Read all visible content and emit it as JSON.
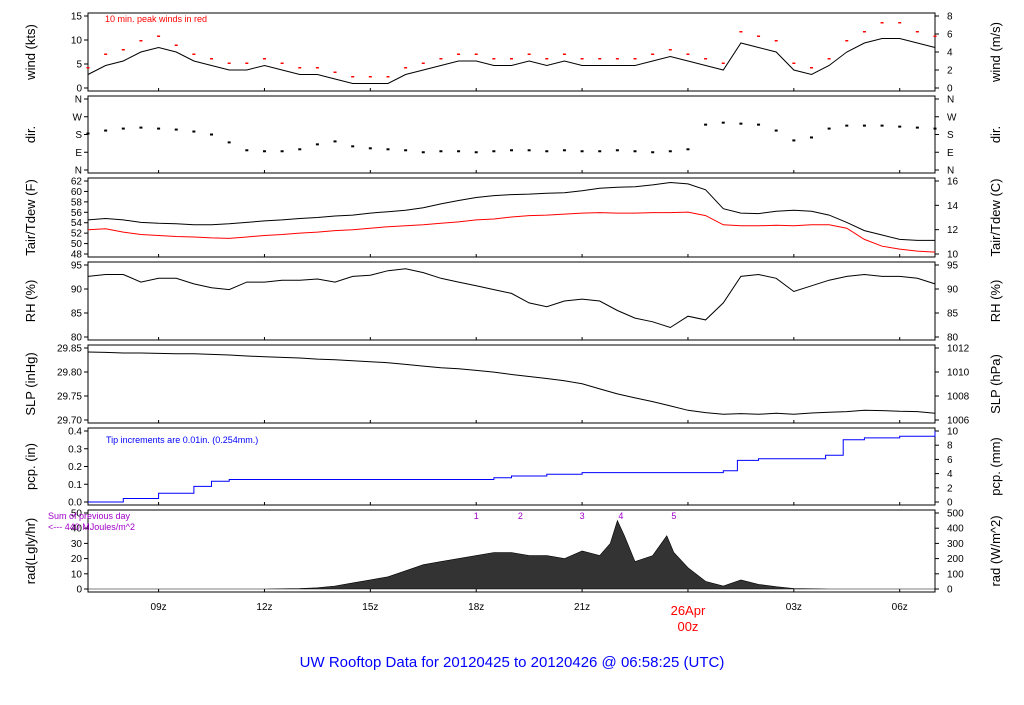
{
  "title": "UW Rooftop Data for 20120425  to  20120426 @ 06:58:25  (UTC)",
  "colors": {
    "line": "#000000",
    "dew": "#ff0000",
    "peak": "#ff0000",
    "pcp": "#0000ff",
    "title": "#0000ff",
    "rad_note": "#a000c8",
    "date_label": "#ff0000",
    "rad_fill": "#333333"
  },
  "x_axis": {
    "ticks": [
      "09z",
      "12z",
      "15z",
      "18z",
      "21z",
      "00z",
      "03z",
      "06z"
    ],
    "tick_hours": [
      2.0,
      5.0,
      8.0,
      11.0,
      14.0,
      17.0,
      20.0,
      23.0
    ],
    "xlim": [
      0.0,
      24.0
    ],
    "date_label": "26Apr",
    "date_hour_label": "00z"
  },
  "chart_data": [
    {
      "type": "line",
      "panel": "wind",
      "ylabel": "wind (kts)",
      "ylabel_right": "wind (m/s)",
      "ylim": [
        0,
        16
      ],
      "yticks": [
        "0",
        "5",
        "10",
        "15"
      ],
      "yticks_right": [
        "0",
        "2",
        "4",
        "6",
        "8"
      ],
      "annotation": "10 min. peak winds in red",
      "x": [
        0.0,
        0.5,
        1.0,
        1.5,
        2.0,
        2.5,
        3.0,
        3.5,
        4.0,
        4.5,
        5.0,
        5.5,
        6.0,
        6.5,
        7.0,
        7.5,
        8.0,
        8.5,
        9.0,
        9.5,
        10.0,
        10.5,
        11.0,
        11.5,
        12.0,
        12.5,
        13.0,
        13.5,
        14.0,
        14.5,
        15.0,
        15.5,
        16.0,
        16.5,
        17.0,
        17.5,
        18.0,
        18.5,
        19.0,
        19.5,
        20.0,
        20.5,
        21.0,
        21.5,
        22.0,
        22.5,
        23.0,
        23.5,
        24.0
      ],
      "series": [
        {
          "values": [
            3,
            5,
            6,
            8,
            9,
            8,
            6,
            5,
            4,
            4,
            5,
            4,
            3,
            3,
            2,
            1,
            1,
            1,
            3,
            4,
            5,
            6,
            6,
            5,
            5,
            6,
            5,
            6,
            5,
            5,
            5,
            5,
            6,
            7,
            6,
            5,
            4,
            10,
            9,
            8,
            4,
            3,
            5,
            8,
            10,
            11,
            11,
            10,
            9
          ]
        },
        {
          "values": [
            4,
            7,
            8,
            10,
            11,
            9,
            7,
            6,
            5,
            5,
            6,
            5,
            4,
            4,
            3,
            2,
            2,
            2,
            4,
            5,
            6,
            7,
            7,
            6,
            6,
            7,
            6,
            7,
            6,
            6,
            6,
            6,
            7,
            8,
            7,
            6,
            5,
            12,
            11,
            10,
            5,
            4,
            6,
            10,
            12,
            14,
            14,
            12,
            11
          ]
        }
      ]
    },
    {
      "type": "scatter",
      "panel": "dir",
      "ylabel": "dir.",
      "ylabel_right": "dir.",
      "ylim": [
        0,
        360
      ],
      "yticks": [
        "N",
        "E",
        "S",
        "W",
        "N"
      ],
      "yticks_right": [
        "N",
        "E",
        "S",
        "W",
        "N"
      ],
      "x": [
        0.0,
        0.5,
        1.0,
        1.5,
        2.0,
        2.5,
        3.0,
        3.5,
        4.0,
        4.5,
        5.0,
        5.5,
        6.0,
        6.5,
        7.0,
        7.5,
        8.0,
        8.5,
        9.0,
        9.5,
        10.0,
        10.5,
        11.0,
        11.5,
        12.0,
        12.5,
        13.0,
        13.5,
        14.0,
        14.5,
        15.0,
        15.5,
        16.0,
        16.5,
        17.0,
        17.5,
        18.0,
        18.5,
        19.0,
        19.5,
        20.0,
        20.5,
        21.0,
        21.5,
        22.0,
        22.5,
        23.0,
        23.5,
        24.0
      ],
      "values": [
        185,
        200,
        210,
        215,
        210,
        205,
        195,
        180,
        140,
        100,
        95,
        95,
        105,
        130,
        145,
        120,
        110,
        105,
        100,
        90,
        95,
        95,
        90,
        95,
        100,
        100,
        95,
        100,
        95,
        95,
        100,
        95,
        90,
        95,
        105,
        230,
        240,
        235,
        230,
        200,
        150,
        165,
        210,
        225,
        225,
        225,
        220,
        215,
        210
      ]
    },
    {
      "type": "line",
      "panel": "temp",
      "ylabel": "Tair/Tdew (F)",
      "ylabel_right": "Tair/Tdew (C)",
      "ylim": [
        47,
        62
      ],
      "yticks": [
        "48",
        "50",
        "52",
        "54",
        "56",
        "58",
        "60",
        "62"
      ],
      "yticks_right": [
        "10",
        "12",
        "14",
        "16"
      ],
      "x": [
        0.0,
        0.5,
        1.0,
        1.5,
        2.0,
        2.5,
        3.0,
        3.5,
        4.0,
        4.5,
        5.0,
        5.5,
        6.0,
        6.5,
        7.0,
        7.5,
        8.0,
        8.5,
        9.0,
        9.5,
        10.0,
        10.5,
        11.0,
        11.5,
        12.0,
        12.5,
        13.0,
        13.5,
        14.0,
        14.5,
        15.0,
        15.5,
        16.0,
        16.5,
        17.0,
        17.5,
        18.0,
        18.5,
        19.0,
        19.5,
        20.0,
        20.5,
        21.0,
        21.5,
        22.0,
        22.5,
        23.0,
        23.5,
        24.0
      ],
      "series": [
        {
          "values": [
            54.0,
            54.3,
            54.0,
            53.5,
            53.3,
            53.2,
            53.0,
            53.0,
            53.2,
            53.5,
            53.8,
            54.0,
            54.3,
            54.5,
            54.8,
            55.0,
            55.4,
            55.7,
            56.0,
            56.5,
            57.3,
            58.0,
            58.6,
            59.0,
            59.2,
            59.3,
            59.5,
            59.6,
            60.0,
            60.5,
            60.7,
            60.8,
            61.2,
            61.7,
            61.4,
            60.2,
            56.3,
            55.4,
            55.3,
            55.8,
            56.0,
            55.8,
            55.0,
            53.5,
            51.8,
            50.9,
            50.0,
            49.8,
            49.8
          ]
        },
        {
          "values": [
            52.0,
            52.2,
            51.5,
            51.0,
            50.8,
            50.6,
            50.5,
            50.3,
            50.2,
            50.5,
            50.8,
            51.0,
            51.3,
            51.5,
            51.8,
            52.0,
            52.3,
            52.6,
            52.8,
            53.0,
            53.3,
            53.6,
            54.0,
            54.2,
            54.6,
            54.9,
            55.0,
            55.2,
            55.4,
            55.5,
            55.4,
            55.4,
            55.5,
            55.5,
            55.6,
            54.9,
            53.0,
            52.8,
            52.8,
            52.9,
            52.8,
            53.0,
            53.0,
            52.3,
            50.0,
            48.6,
            48.0,
            47.6,
            47.4
          ]
        }
      ]
    },
    {
      "type": "line",
      "panel": "rh",
      "ylabel": "RH (%)",
      "ylabel_right": "RH (%)",
      "ylim": [
        77,
        96
      ],
      "yticks": [
        "80",
        "85",
        "90",
        "95"
      ],
      "yticks_right": [
        "80",
        "85",
        "90",
        "95"
      ],
      "x": [
        0.0,
        0.5,
        1.0,
        1.5,
        2.0,
        2.5,
        3.0,
        3.5,
        4.0,
        4.5,
        5.0,
        5.5,
        6.0,
        6.5,
        7.0,
        7.5,
        8.0,
        8.5,
        9.0,
        9.5,
        10.0,
        10.5,
        11.0,
        11.5,
        12.0,
        12.5,
        13.0,
        13.5,
        14.0,
        14.5,
        15.0,
        15.5,
        16.0,
        16.5,
        17.0,
        17.5,
        18.0,
        18.5,
        19.0,
        19.5,
        20.0,
        20.5,
        21.0,
        21.5,
        22.0,
        22.5,
        23.0,
        23.5,
        24.0
      ],
      "values": [
        93.0,
        93.5,
        93.5,
        91.5,
        92.5,
        92.5,
        91.0,
        90.0,
        89.5,
        91.5,
        91.5,
        92.0,
        92.0,
        92.3,
        91.5,
        93.0,
        93.3,
        94.5,
        95.0,
        94.0,
        92.5,
        91.5,
        90.5,
        89.5,
        88.5,
        86.0,
        85.0,
        86.5,
        87.0,
        86.5,
        84.0,
        82.0,
        81.0,
        79.5,
        82.5,
        81.5,
        86.0,
        93.0,
        93.5,
        92.5,
        89.0,
        90.5,
        92.0,
        93.0,
        93.5,
        93.0,
        93.0,
        92.5,
        91.0
      ]
    },
    {
      "type": "line",
      "panel": "slp",
      "ylabel": "SLP (inHg)",
      "ylabel_right": "SLP (hPa)",
      "ylim": [
        29.68,
        29.895
      ],
      "yticks": [
        "29.70",
        "29.75",
        "29.80",
        "29.85"
      ],
      "yticks_right": [
        "1006",
        "1008",
        "1010",
        "1012"
      ],
      "x": [
        0.0,
        0.5,
        1.0,
        1.5,
        2.0,
        2.5,
        3.0,
        3.5,
        4.0,
        4.5,
        5.0,
        5.5,
        6.0,
        6.5,
        7.0,
        7.5,
        8.0,
        8.5,
        9.0,
        9.5,
        10.0,
        10.5,
        11.0,
        11.5,
        12.0,
        12.5,
        13.0,
        13.5,
        14.0,
        14.5,
        15.0,
        15.5,
        16.0,
        16.5,
        17.0,
        17.5,
        18.0,
        18.5,
        19.0,
        19.5,
        20.0,
        20.5,
        21.0,
        21.5,
        22.0,
        22.5,
        23.0,
        23.5,
        24.0
      ],
      "values": [
        29.883,
        29.882,
        29.88,
        29.88,
        29.879,
        29.878,
        29.878,
        29.876,
        29.874,
        29.871,
        29.869,
        29.867,
        29.865,
        29.862,
        29.86,
        29.857,
        29.854,
        29.851,
        29.846,
        29.841,
        29.836,
        29.833,
        29.828,
        29.823,
        29.816,
        29.81,
        29.804,
        29.797,
        29.788,
        29.773,
        29.758,
        29.746,
        29.735,
        29.722,
        29.709,
        29.702,
        29.697,
        29.699,
        29.697,
        29.7,
        29.697,
        29.701,
        29.703,
        29.705,
        29.709,
        29.708,
        29.706,
        29.705,
        29.7
      ]
    },
    {
      "type": "line",
      "panel": "pcp",
      "ylabel": "pcp. (in)",
      "ylabel_right": "pcp. (mm)",
      "ylim": [
        0,
        0.41
      ],
      "yticks": [
        "0.0",
        "0.1",
        "0.2",
        "0.3",
        "0.4"
      ],
      "yticks_right": [
        "0",
        "2",
        "4",
        "6",
        "8",
        "10"
      ],
      "annotation": "Tip increments are 0.01in. (0.254mm.)",
      "x": [
        0.0,
        1.0,
        2.0,
        3.0,
        3.5,
        4.0,
        5.0,
        6.0,
        7.0,
        8.0,
        9.0,
        10.0,
        11.0,
        11.5,
        12.0,
        13.0,
        14.0,
        15.0,
        16.0,
        17.0,
        18.0,
        18.4,
        19.0,
        20.0,
        20.9,
        21.4,
        22.0,
        23.0,
        24.0
      ],
      "values": [
        0.0,
        0.02,
        0.05,
        0.09,
        0.12,
        0.13,
        0.13,
        0.13,
        0.13,
        0.13,
        0.13,
        0.13,
        0.13,
        0.14,
        0.15,
        0.16,
        0.17,
        0.17,
        0.17,
        0.17,
        0.18,
        0.24,
        0.25,
        0.25,
        0.27,
        0.36,
        0.37,
        0.38,
        0.41
      ]
    },
    {
      "type": "area",
      "panel": "rad",
      "ylabel": "rad(Lgly/hr)",
      "ylabel_right": "rad (W/m^2)",
      "ylim": [
        0,
        50
      ],
      "yticks": [
        "0",
        "10",
        "20",
        "30",
        "40",
        "50"
      ],
      "yticks_right": [
        "0",
        "100",
        "200",
        "300",
        "400",
        "500"
      ],
      "annotation_lines": [
        "Sum of previous day",
        "<--- 440 MJoules/m^2"
      ],
      "markers": [
        "1",
        "2",
        "3",
        "4",
        "5"
      ],
      "marker_hours": [
        11.0,
        12.25,
        14.0,
        15.1,
        16.6
      ],
      "x": [
        0.0,
        1.0,
        2.0,
        3.0,
        4.0,
        5.0,
        6.0,
        6.5,
        7.0,
        7.5,
        8.0,
        8.5,
        9.0,
        9.5,
        10.0,
        10.5,
        11.0,
        11.5,
        12.0,
        12.5,
        13.0,
        13.5,
        14.0,
        14.5,
        14.8,
        15.0,
        15.2,
        15.5,
        16.0,
        16.4,
        16.6,
        17.0,
        17.5,
        18.0,
        18.5,
        19.0,
        19.5,
        20.0,
        21.0,
        22.0,
        23.0,
        24.0
      ],
      "values": [
        0,
        0,
        0,
        0,
        0,
        0,
        0.3,
        0.8,
        2,
        4,
        6,
        8,
        12,
        16,
        18,
        20,
        22,
        24,
        24,
        22,
        22,
        20,
        25,
        22,
        30,
        45,
        35,
        18,
        22,
        35,
        24,
        14,
        5,
        2,
        6,
        3,
        1.5,
        0.3,
        0,
        0,
        0,
        0
      ]
    }
  ]
}
